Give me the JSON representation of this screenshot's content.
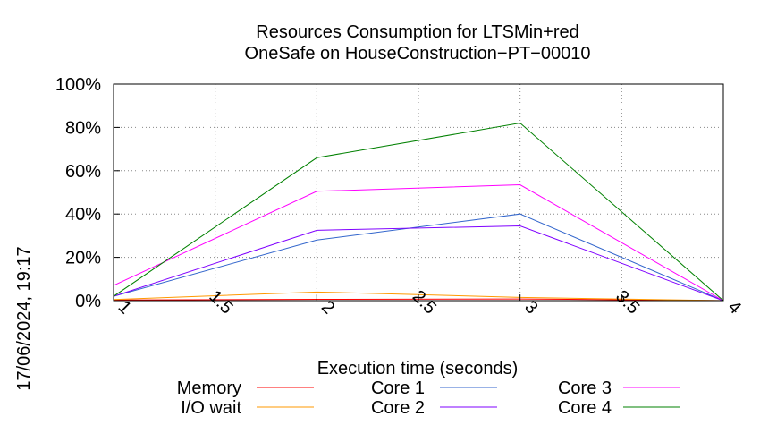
{
  "chart_data": {
    "type": "line",
    "title": "Resources Consumption for LTSMin+red",
    "subtitle": "OneSafe on HouseConstruction−PT−00010",
    "xlabel": "Execution time (seconds)",
    "ylabel": "",
    "timestamp": "17/06/2024, 19:17",
    "xlim": [
      1,
      4
    ],
    "ylim": [
      0,
      100
    ],
    "x_ticks": [
      "1",
      "1.5",
      "2",
      "2.5",
      "3",
      "3.5",
      "4"
    ],
    "x_tick_values": [
      1,
      1.5,
      2,
      2.5,
      3,
      3.5,
      4
    ],
    "y_ticks": [
      "0%",
      "20%",
      "40%",
      "60%",
      "80%",
      "100%"
    ],
    "y_tick_values": [
      0,
      20,
      40,
      60,
      80,
      100
    ],
    "grid": true,
    "legend_position": "bottom",
    "x": [
      1,
      2,
      3,
      4
    ],
    "series": [
      {
        "name": "Memory",
        "color": "#ff0000",
        "values": [
          0.3,
          0.6,
          0.8,
          0
        ]
      },
      {
        "name": "I/O wait",
        "color": "#ff9900",
        "values": [
          0.5,
          4,
          1.5,
          0
        ]
      },
      {
        "name": "Core 1",
        "color": "#3366cc",
        "values": [
          2,
          28,
          40,
          0
        ]
      },
      {
        "name": "Core 2",
        "color": "#7f00ff",
        "values": [
          2,
          32.5,
          34.5,
          0
        ]
      },
      {
        "name": "Core 3",
        "color": "#ff00ff",
        "values": [
          7,
          50.5,
          53.5,
          0
        ]
      },
      {
        "name": "Core 4",
        "color": "#008000",
        "values": [
          2,
          66,
          82,
          0
        ]
      }
    ]
  }
}
